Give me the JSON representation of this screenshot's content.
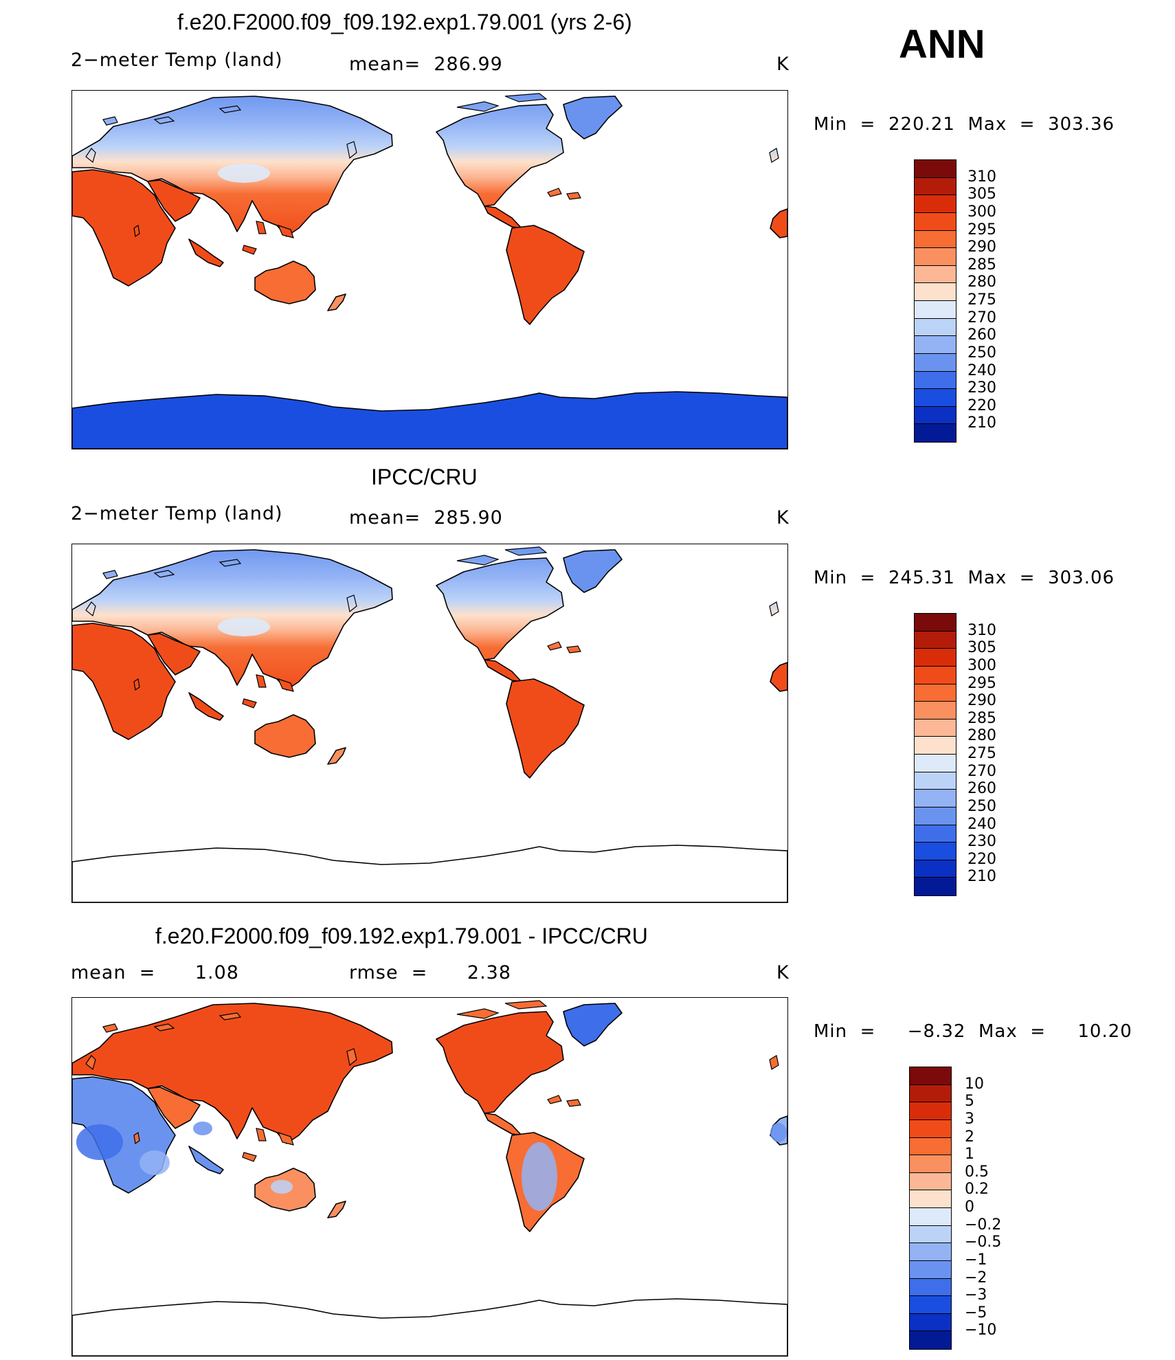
{
  "season_label": "ANN",
  "panels": [
    {
      "title": "f.e20.F2000.f09_f09.192.exp1.79.001 (yrs 2-6)",
      "left_label": "2−meter Temp (land)",
      "center_label": "mean=  286.99",
      "units": "K",
      "min_max": "Min  =  220.21  Max  =  303.36",
      "colorbar_labels": [
        "310",
        "305",
        "300",
        "295",
        "290",
        "285",
        "280",
        "275",
        "270",
        "260",
        "250",
        "240",
        "230",
        "220",
        "210"
      ],
      "field": "model"
    },
    {
      "title": "IPCC/CRU",
      "left_label": "2−meter Temp (land)",
      "center_label": "mean=  285.90",
      "units": "K",
      "min_max": "Min  =  245.31  Max  =  303.06",
      "colorbar_labels": [
        "310",
        "305",
        "300",
        "295",
        "290",
        "285",
        "280",
        "275",
        "270",
        "260",
        "250",
        "240",
        "230",
        "220",
        "210"
      ],
      "field": "obs"
    },
    {
      "title": "f.e20.F2000.f09_f09.192.exp1.79.001 - IPCC/CRU",
      "left_label": "mean  =      1.08",
      "center_label": "rmse  =      2.38",
      "units": "K",
      "min_max": "Min  =     −8.32  Max  =     10.20",
      "colorbar_labels": [
        "10",
        "5",
        "3",
        "2",
        "1",
        "0.5",
        "0.2",
        "0",
        "−0.2",
        "−0.5",
        "−1",
        "−2",
        "−3",
        "−5",
        "−10"
      ],
      "field": "diff"
    }
  ],
  "colors": {
    "palette": [
      "#7b0a0a",
      "#b31c08",
      "#d92d0a",
      "#f04c1a",
      "#f76d34",
      "#fa9060",
      "#fcb896",
      "#fde1cc",
      "#deeafa",
      "#bcd3f8",
      "#93b3f5",
      "#6a93f0",
      "#3f6eea",
      "#1a4ee0",
      "#0a30c4",
      "#021a96"
    ],
    "ocean": "#ffffff",
    "coast": "#000000"
  }
}
